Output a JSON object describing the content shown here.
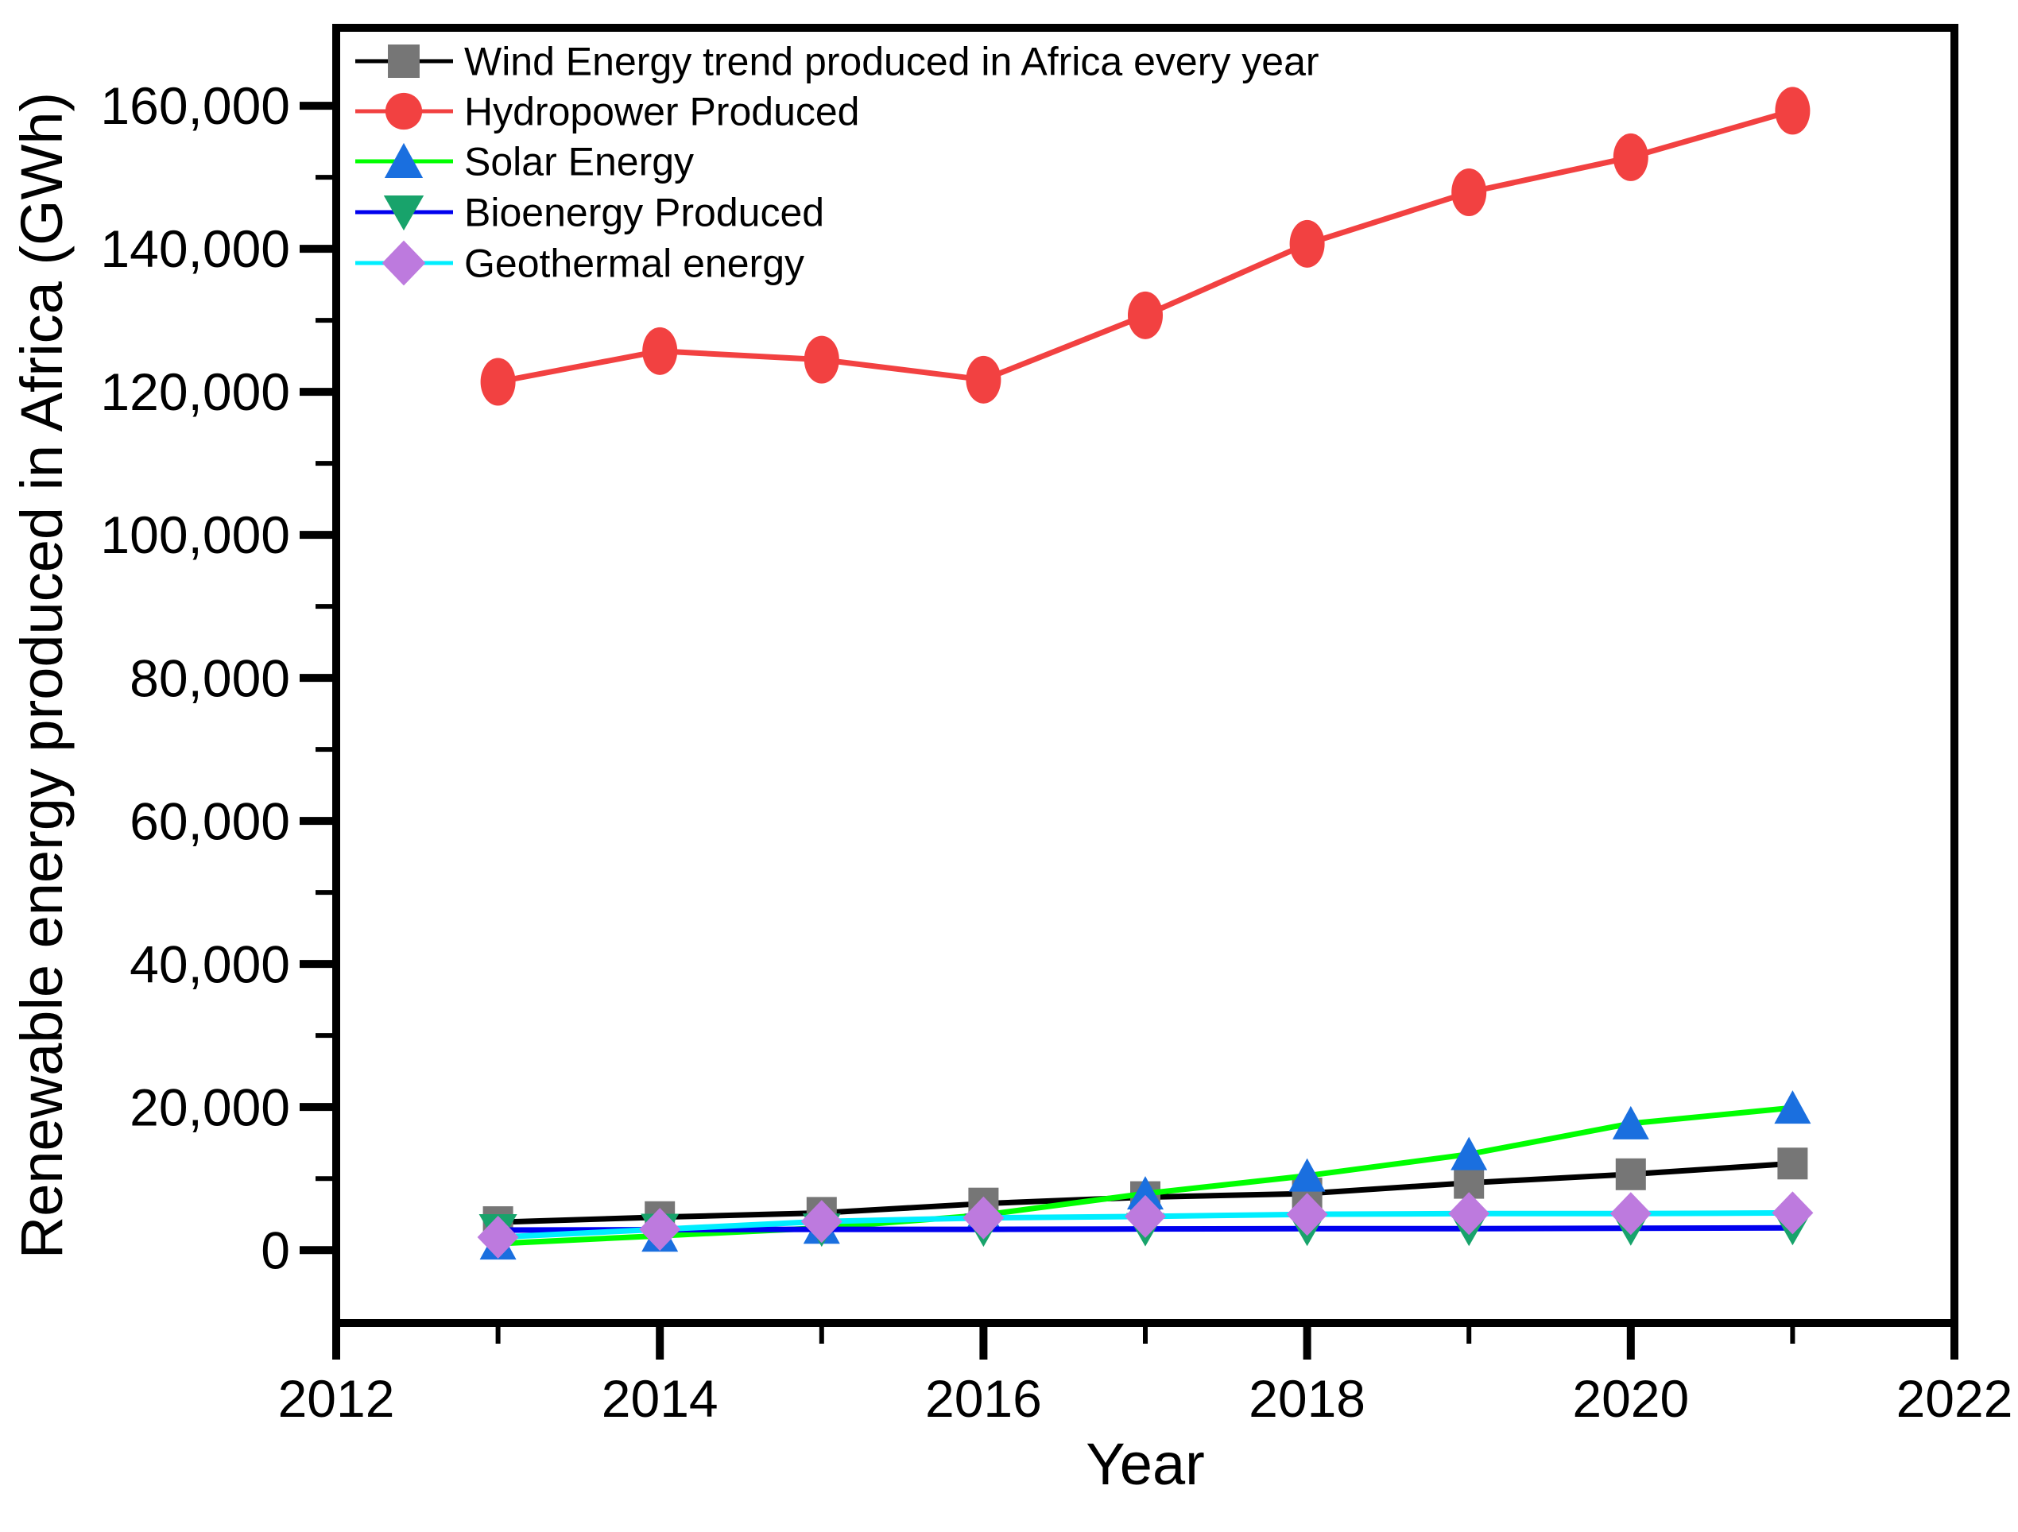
{
  "figure": {
    "background": "#ffffff",
    "text_color": "#000000",
    "axis_color": "#000000"
  },
  "chart_data": {
    "type": "line",
    "title": "",
    "xlabel": "Year",
    "ylabel": "Renewable energy produced in Africa (GWh)",
    "x": [
      2013,
      2014,
      2015,
      2016,
      2017,
      2018,
      2019,
      2020,
      2021
    ],
    "xlim": [
      2012,
      2022
    ],
    "ylim": [
      -10200,
      170900
    ],
    "x_major_ticks": [
      2012,
      2014,
      2016,
      2018,
      2020,
      2022
    ],
    "x_minor_ticks": [
      2013,
      2015,
      2017,
      2019,
      2021
    ],
    "y_major_ticks": [
      0,
      20000,
      40000,
      60000,
      80000,
      100000,
      120000,
      140000,
      160000
    ],
    "y_minor_ticks": [
      10000,
      30000,
      50000,
      70000,
      90000,
      110000,
      130000,
      150000
    ],
    "grid": false,
    "legend_position": "top-left-inside",
    "series": [
      {
        "name": "Wind Energy trend produced in Africa every year",
        "line_color": "#000000",
        "marker": "square",
        "marker_color": "#767676",
        "values": [
          3900,
          4600,
          5200,
          6500,
          7400,
          7900,
          9400,
          10600,
          12100
        ]
      },
      {
        "name": "Hydropower Produced",
        "line_color": "#f24141",
        "marker": "circle",
        "marker_color": "#f24141",
        "values": [
          121400,
          125700,
          124500,
          121700,
          130700,
          140700,
          147900,
          152800,
          159300
        ]
      },
      {
        "name": "Solar Energy",
        "line_color": "#00ff00",
        "marker": "triangle-up",
        "marker_color": "#1a6fdf",
        "values": [
          900,
          2000,
          3100,
          4900,
          7900,
          10400,
          13400,
          17700,
          19900
        ]
      },
      {
        "name": "Bioenergy Produced",
        "line_color": "#0000ee",
        "marker": "triangle-down",
        "marker_color": "#18a36b",
        "values": [
          2800,
          2850,
          2900,
          2900,
          2950,
          3000,
          3000,
          3050,
          3100
        ]
      },
      {
        "name": "Geothermal energy",
        "line_color": "#00eeff",
        "marker": "diamond",
        "marker_color": "#bd7ade",
        "values": [
          1800,
          2900,
          4000,
          4500,
          4700,
          5000,
          5100,
          5100,
          5200
        ]
      }
    ]
  }
}
